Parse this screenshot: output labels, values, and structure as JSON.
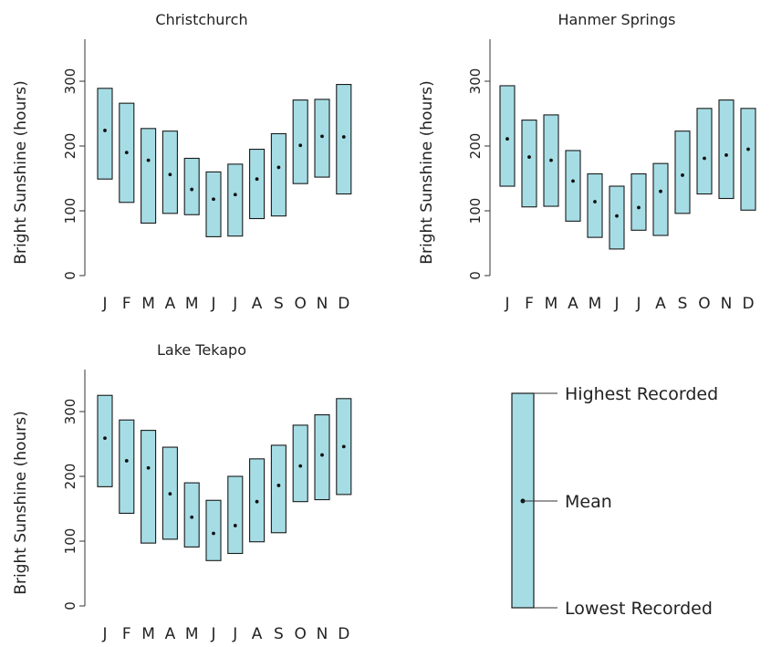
{
  "colors": {
    "box_fill": "#a6dde5",
    "box_stroke": "#1a1a1a",
    "axis": "#333333",
    "text": "#222222"
  },
  "chart_data": [
    {
      "type": "range-bar",
      "title": "Christchurch",
      "ylabel": "Bright Sunshine (hours)",
      "categories": [
        "J",
        "F",
        "M",
        "A",
        "M",
        "J",
        "J",
        "A",
        "S",
        "O",
        "N",
        "D"
      ],
      "yticks": [
        0,
        100,
        200,
        300
      ],
      "ylim": [
        0,
        365
      ],
      "grid": false,
      "series": [
        {
          "name": "Lowest Recorded",
          "values": [
            149,
            113,
            81,
            96,
            94,
            60,
            61,
            88,
            92,
            142,
            152,
            126
          ]
        },
        {
          "name": "Highest Recorded",
          "values": [
            289,
            266,
            227,
            223,
            181,
            160,
            172,
            195,
            219,
            271,
            272,
            295
          ]
        },
        {
          "name": "Mean",
          "values": [
            224,
            190,
            178,
            156,
            133,
            118,
            125,
            149,
            167,
            201,
            215,
            214
          ]
        }
      ]
    },
    {
      "type": "range-bar",
      "title": "Hanmer Springs",
      "ylabel": "Bright Sunshine (hours)",
      "categories": [
        "J",
        "F",
        "M",
        "A",
        "M",
        "J",
        "J",
        "A",
        "S",
        "O",
        "N",
        "D"
      ],
      "yticks": [
        0,
        100,
        200,
        300
      ],
      "ylim": [
        0,
        365
      ],
      "grid": false,
      "series": [
        {
          "name": "Lowest Recorded",
          "values": [
            138,
            106,
            107,
            84,
            59,
            41,
            70,
            62,
            96,
            126,
            119,
            101
          ]
        },
        {
          "name": "Highest Recorded",
          "values": [
            293,
            240,
            248,
            193,
            157,
            138,
            157,
            173,
            223,
            258,
            271,
            258
          ]
        },
        {
          "name": "Mean",
          "values": [
            211,
            183,
            178,
            146,
            114,
            92,
            105,
            130,
            155,
            181,
            186,
            195
          ]
        }
      ]
    },
    {
      "type": "range-bar",
      "title": "Lake Tekapo",
      "ylabel": "Bright Sunshine (hours)",
      "categories": [
        "J",
        "F",
        "M",
        "A",
        "M",
        "J",
        "J",
        "A",
        "S",
        "O",
        "N",
        "D"
      ],
      "yticks": [
        0,
        100,
        200,
        300
      ],
      "ylim": [
        0,
        365
      ],
      "grid": false,
      "series": [
        {
          "name": "Lowest Recorded",
          "values": [
            184,
            143,
            97,
            103,
            91,
            70,
            81,
            99,
            113,
            161,
            164,
            172
          ]
        },
        {
          "name": "Highest Recorded",
          "values": [
            325,
            287,
            271,
            245,
            190,
            163,
            200,
            227,
            248,
            279,
            295,
            320
          ]
        },
        {
          "name": "Mean",
          "values": [
            259,
            224,
            213,
            173,
            137,
            112,
            124,
            161,
            186,
            216,
            233,
            246
          ]
        }
      ]
    }
  ],
  "key": {
    "highest": "Highest Recorded",
    "mean": "Mean",
    "lowest": "Lowest Recorded"
  }
}
